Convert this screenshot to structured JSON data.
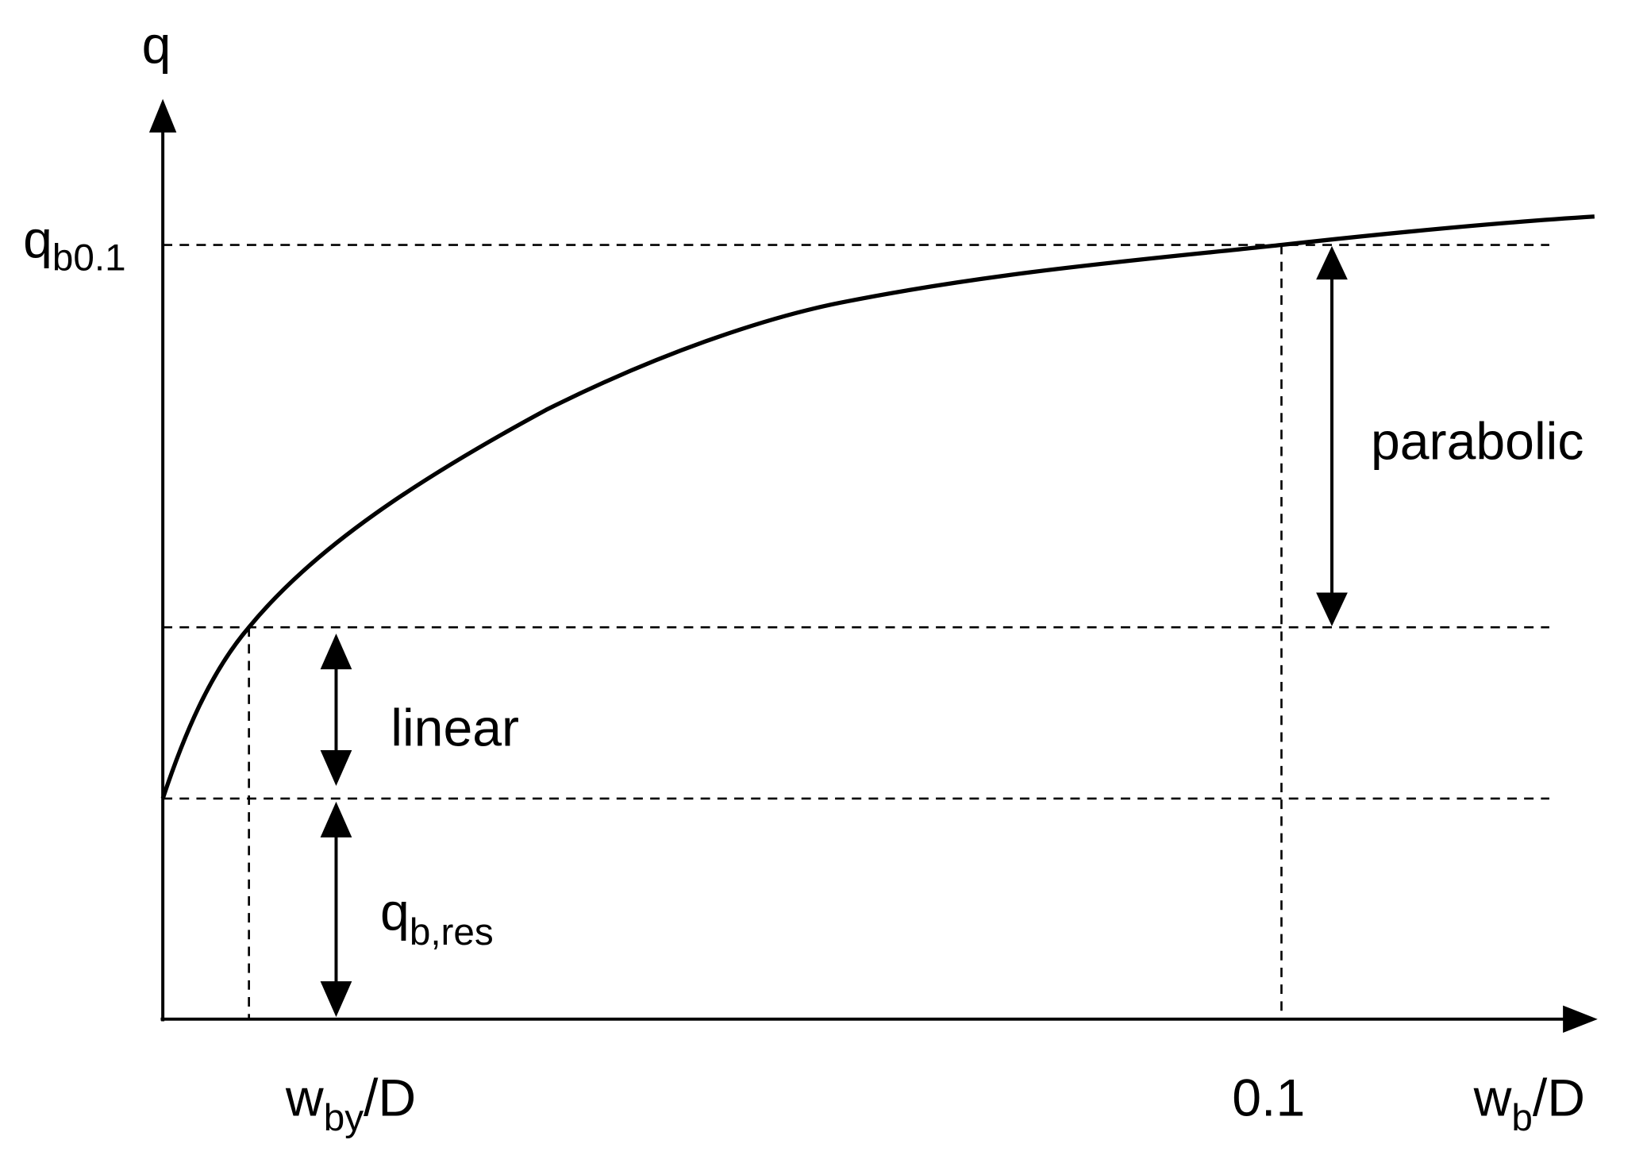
{
  "y_axis_label": {
    "base": "q"
  },
  "x_axis_label": {
    "base": "w",
    "sub": "b",
    "tail": "/D"
  },
  "level_label": {
    "base": "q",
    "sub": "b0.1"
  },
  "x_marks": [
    {
      "base": "w",
      "sub": "by",
      "tail": "/D"
    },
    {
      "base": "0.1"
    }
  ],
  "regions": [
    {
      "label": "parabolic"
    },
    {
      "label": "linear"
    },
    {
      "base": "q",
      "sub": "b,res"
    }
  ]
}
